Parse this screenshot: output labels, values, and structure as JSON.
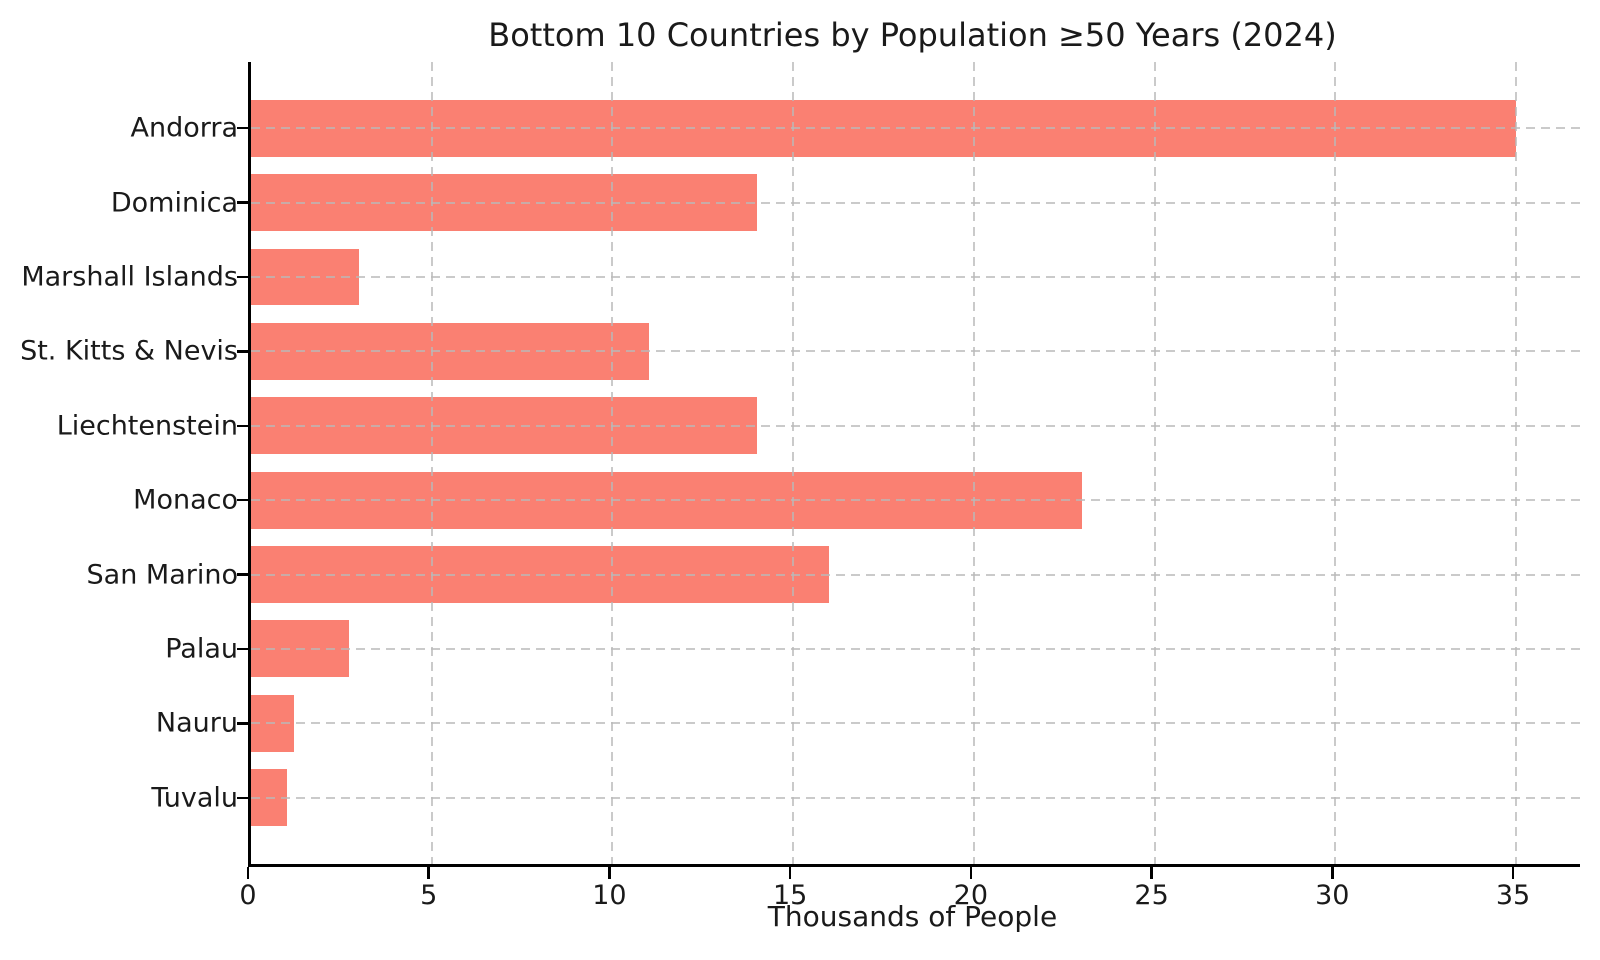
{
  "title": "Bottom 10 Countries by Population ≥50 Years (2024)",
  "chart_data": {
    "type": "bar",
    "orientation": "horizontal",
    "title": "Bottom 10 Countries by Population ≥50 Years (2024)",
    "xlabel": "Thousands of People",
    "ylabel": "",
    "categories": [
      "Andorra",
      "Dominica",
      "Marshall Islands",
      "St. Kitts & Nevis",
      "Liechtenstein",
      "Monaco",
      "San Marino",
      "Palau",
      "Nauru",
      "Tuvalu"
    ],
    "values": [
      35,
      14,
      3,
      11,
      14,
      23,
      16,
      2.7,
      1.2,
      1.0
    ],
    "xticks": [
      0,
      5,
      10,
      15,
      20,
      25,
      30,
      35
    ],
    "xlim": [
      0,
      36.77
    ],
    "grid": true,
    "grid_style": "dashed",
    "legend": "none",
    "bar_color": "#fa8072",
    "grid_color": "#b9b9b9",
    "spine_color": "#000000",
    "text_color": "#1a1a1a",
    "background_color": "#ffffff"
  }
}
